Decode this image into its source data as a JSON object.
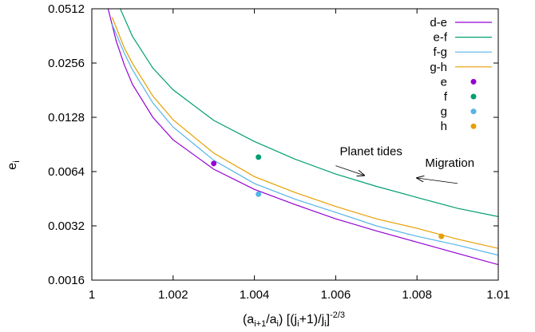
{
  "chart_data": {
    "type": "line",
    "xlabel": {
      "base": "(a",
      "sub1": "i+1",
      "mid1": "/a",
      "sub2": "i",
      "mid2": ") [(j",
      "sub3": "i",
      "mid3": "+1)/j",
      "sub4": "i",
      "mid4": "]",
      "sup": "-2/3"
    },
    "ylabel": {
      "base": "e",
      "sub": "i"
    },
    "xlim": [
      1.0,
      1.01
    ],
    "ylim": [
      0.0016,
      0.0512
    ],
    "ylog": true,
    "xticks": [
      1.0,
      1.002,
      1.004,
      1.006,
      1.008,
      1.01
    ],
    "xtick_labels": [
      "1",
      "1.002",
      "1.004",
      "1.006",
      "1.008",
      "1.01"
    ],
    "yticks": [
      0.0016,
      0.0032,
      0.0064,
      0.0128,
      0.0256,
      0.0512
    ],
    "ytick_labels": [
      "0.0016",
      "0.0032",
      "0.0064",
      "0.0128",
      "0.0256",
      "0.0512"
    ],
    "grid": false,
    "legend_position": "top-right",
    "series": [
      {
        "name": "d-e",
        "color": "#9400d3",
        "x": [
          1.0004,
          1.0006,
          1.0008,
          1.001,
          1.0015,
          1.002,
          1.003,
          1.004,
          1.005,
          1.006,
          1.007,
          1.008,
          1.009,
          1.01
        ],
        "y": [
          0.0512,
          0.034,
          0.025,
          0.0195,
          0.0128,
          0.0096,
          0.0066,
          0.0051,
          0.0042,
          0.0035,
          0.003,
          0.0026,
          0.00225,
          0.00195
        ]
      },
      {
        "name": "e-f",
        "color": "#009e73",
        "x": [
          1.0007,
          1.001,
          1.0015,
          1.002,
          1.003,
          1.004,
          1.005,
          1.006,
          1.007,
          1.008,
          1.009,
          1.01
        ],
        "y": [
          0.0512,
          0.036,
          0.024,
          0.0182,
          0.0123,
          0.0094,
          0.0075,
          0.0062,
          0.0053,
          0.0046,
          0.004,
          0.0036
        ]
      },
      {
        "name": "f-g",
        "color": "#56b4e9",
        "x": [
          1.0005,
          1.0008,
          1.001,
          1.0015,
          1.002,
          1.003,
          1.004,
          1.005,
          1.006,
          1.007,
          1.008,
          1.009,
          1.01
        ],
        "y": [
          0.042,
          0.029,
          0.0235,
          0.0154,
          0.0113,
          0.0074,
          0.0055,
          0.0045,
          0.0038,
          0.0032,
          0.0028,
          0.0025,
          0.0022
        ]
      },
      {
        "name": "g-h",
        "color": "#e69f00",
        "x": [
          1.0005,
          1.0008,
          1.001,
          1.0015,
          1.002,
          1.003,
          1.004,
          1.005,
          1.006,
          1.007,
          1.008,
          1.009,
          1.01
        ],
        "y": [
          0.046,
          0.031,
          0.0255,
          0.0168,
          0.0124,
          0.0081,
          0.006,
          0.0049,
          0.0041,
          0.0035,
          0.0031,
          0.0027,
          0.0024
        ]
      }
    ],
    "points": [
      {
        "name": "e",
        "color": "#9400d3",
        "x": 1.003,
        "y": 0.0071
      },
      {
        "name": "f",
        "color": "#009e73",
        "x": 1.0041,
        "y": 0.0077
      },
      {
        "name": "g",
        "color": "#56b4e9",
        "x": 1.0041,
        "y": 0.0048
      },
      {
        "name": "h",
        "color": "#e69f00",
        "x": 1.0086,
        "y": 0.0028
      }
    ],
    "annotations": [
      {
        "text": "Planet tides",
        "x": 1.0061,
        "y": 0.0079
      },
      {
        "text": "Migration",
        "x": 1.0082,
        "y": 0.0068
      }
    ],
    "arrows": [
      {
        "from": [
          1.006,
          0.0069
        ],
        "to": [
          1.0067,
          0.0061
        ]
      },
      {
        "from": [
          1.009,
          0.0055
        ],
        "to": [
          1.008,
          0.0059
        ]
      }
    ]
  }
}
